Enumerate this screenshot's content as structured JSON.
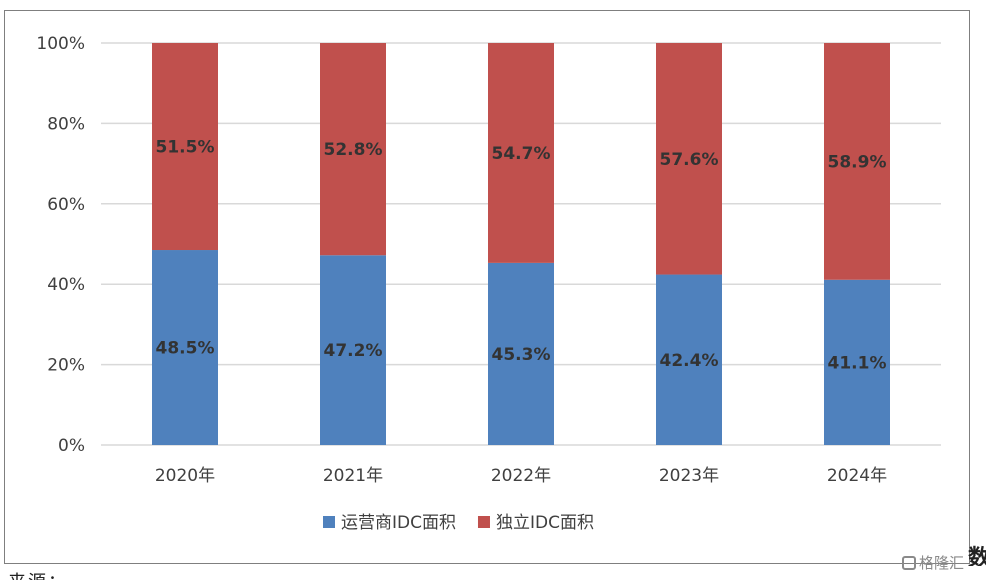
{
  "chart_data": {
    "type": "bar",
    "stacked": true,
    "categories": [
      "2020年",
      "2021年",
      "2022年",
      "2023年",
      "2024年"
    ],
    "series": [
      {
        "name": "运营商IDC面积",
        "color": "#4f81bd",
        "values": [
          48.5,
          47.2,
          45.3,
          42.4,
          41.1
        ],
        "labels": [
          "48.5%",
          "47.2%",
          "45.3%",
          "42.4%",
          "41.1%"
        ]
      },
      {
        "name": "独立IDC面积",
        "color": "#c0504d",
        "values": [
          51.5,
          52.8,
          54.7,
          57.6,
          58.9
        ],
        "labels": [
          "51.5%",
          "52.8%",
          "54.7%",
          "57.6%",
          "58.9%"
        ]
      }
    ],
    "yticks": [
      "0%",
      "20%",
      "40%",
      "60%",
      "80%",
      "100%"
    ],
    "ylim": [
      0,
      100
    ],
    "grid": true,
    "legend": "bottom"
  },
  "side_fragment": "数",
  "footer_fragment": "来源：",
  "watermark": "格隆汇"
}
